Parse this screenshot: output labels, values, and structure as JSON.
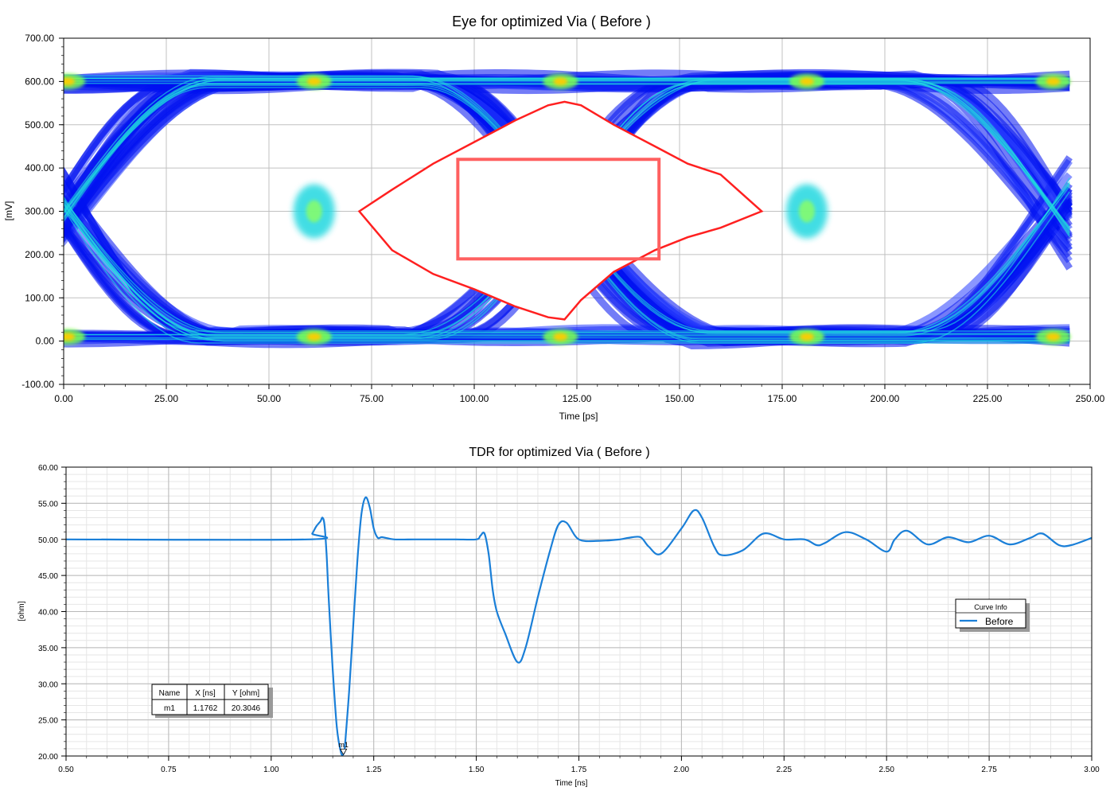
{
  "chart_data": [
    {
      "type": "line",
      "chart_kind": "eye diagram",
      "title": "Eye for optimized Via ( Before )",
      "xlabel": "Time [ps]",
      "ylabel": "[mV]",
      "xlim": [
        0,
        250
      ],
      "ylim": [
        -100,
        700
      ],
      "x_ticks": [
        "0.00",
        "25.00",
        "50.00",
        "75.00",
        "100.00",
        "125.00",
        "150.00",
        "175.00",
        "200.00",
        "225.00",
        "250.00"
      ],
      "y_ticks": [
        "-100.00",
        "0.00",
        "100.00",
        "200.00",
        "300.00",
        "400.00",
        "500.00",
        "600.00",
        "700.00"
      ],
      "grid": true,
      "signal": {
        "high_mv": 600,
        "low_mv": 10,
        "crossing_mv": 300,
        "unit_interval_ps": 120,
        "crossings_ps": [
          1,
          61,
          121,
          181,
          241
        ],
        "data_end_ps": 240
      },
      "eye_contour": {
        "color": "#ff2020",
        "x": [
          72,
          80,
          90,
          100,
          110,
          118,
          122,
          126,
          134,
          144,
          152,
          160,
          170,
          160,
          152,
          144,
          134,
          126,
          122,
          118,
          110,
          100,
          90,
          80,
          72
        ],
        "y": [
          300,
          350,
          410,
          460,
          510,
          545,
          553,
          545,
          500,
          450,
          410,
          385,
          300,
          262,
          240,
          210,
          160,
          95,
          50,
          55,
          80,
          120,
          155,
          210,
          300
        ]
      },
      "mask_box": {
        "x": [
          96,
          145
        ],
        "y": [
          190,
          420
        ],
        "color": "#ff6060"
      },
      "colors": {
        "density_low": "#0010f0",
        "density_mid": "#20d8e0",
        "density_high": "#ffcc00",
        "axis": "#000000",
        "grid": "#c0c0c0"
      }
    },
    {
      "type": "line",
      "chart_kind": "TDR",
      "title": "TDR for optimized Via ( Before )",
      "xlabel": "Time [ns]",
      "ylabel": "[ohm]",
      "xlim": [
        0.5,
        3.0
      ],
      "ylim": [
        20,
        60
      ],
      "x_ticks": [
        "0.50",
        "0.75",
        "1.00",
        "1.25",
        "1.50",
        "1.75",
        "2.00",
        "2.25",
        "2.50",
        "2.75",
        "3.00"
      ],
      "y_ticks": [
        "20.00",
        "25.00",
        "30.00",
        "35.00",
        "40.00",
        "45.00",
        "50.00",
        "55.00",
        "60.00"
      ],
      "grid": true,
      "series": [
        {
          "name": "Before",
          "color": "#1a7fd8",
          "x": [
            0.5,
            1.09,
            1.1,
            1.11,
            1.12,
            1.125,
            1.13,
            1.135,
            1.14,
            1.15,
            1.16,
            1.17,
            1.176,
            1.18,
            1.19,
            1.2,
            1.21,
            1.22,
            1.23,
            1.24,
            1.25,
            1.26,
            1.27,
            1.3,
            1.35,
            1.4,
            1.45,
            1.5,
            1.51,
            1.52,
            1.53,
            1.54,
            1.55,
            1.57,
            1.6,
            1.62,
            1.65,
            1.68,
            1.7,
            1.72,
            1.75,
            1.8,
            1.85,
            1.87,
            1.9,
            1.92,
            1.95,
            2.0,
            2.03,
            2.05,
            2.08,
            2.1,
            2.15,
            2.2,
            2.25,
            2.3,
            2.33,
            2.35,
            2.4,
            2.45,
            2.5,
            2.52,
            2.55,
            2.6,
            2.65,
            2.7,
            2.75,
            2.8,
            2.85,
            2.88,
            2.92,
            2.95,
            3.0
          ],
          "y": [
            50.0,
            50.0,
            50.8,
            51.8,
            52.5,
            53.0,
            52.0,
            48.0,
            42.0,
            32.0,
            24.0,
            20.5,
            20.3,
            21.5,
            29.0,
            38.0,
            47.0,
            53.5,
            55.8,
            54.5,
            51.5,
            50.2,
            50.3,
            50.0,
            50.0,
            50.0,
            50.0,
            50.0,
            50.5,
            50.8,
            48.0,
            43.0,
            40.0,
            37.0,
            33.0,
            35.0,
            42.0,
            48.5,
            52.0,
            52.3,
            50.0,
            49.8,
            50.0,
            50.2,
            50.3,
            49.0,
            48.0,
            51.5,
            54.0,
            53.0,
            49.0,
            47.8,
            48.5,
            50.8,
            50.0,
            50.0,
            49.2,
            49.5,
            51.0,
            50.0,
            48.3,
            50.0,
            51.2,
            49.3,
            50.3,
            49.6,
            50.5,
            49.3,
            50.2,
            50.8,
            49.2,
            49.2,
            50.2
          ]
        }
      ],
      "legend": {
        "title": "Curve Info",
        "entries": [
          "Before"
        ],
        "placement": "right"
      },
      "marker": {
        "label": "m1",
        "x": 1.1762,
        "y": 20.3046,
        "table": {
          "headers": [
            "Name",
            "X [ns]",
            "Y [ohm]"
          ],
          "row": [
            "m1",
            "1.1762",
            "20.3046"
          ]
        }
      },
      "colors": {
        "axis": "#000000",
        "grid_major": "#b8b8b8",
        "grid_minor": "#e6e6e6"
      }
    }
  ]
}
